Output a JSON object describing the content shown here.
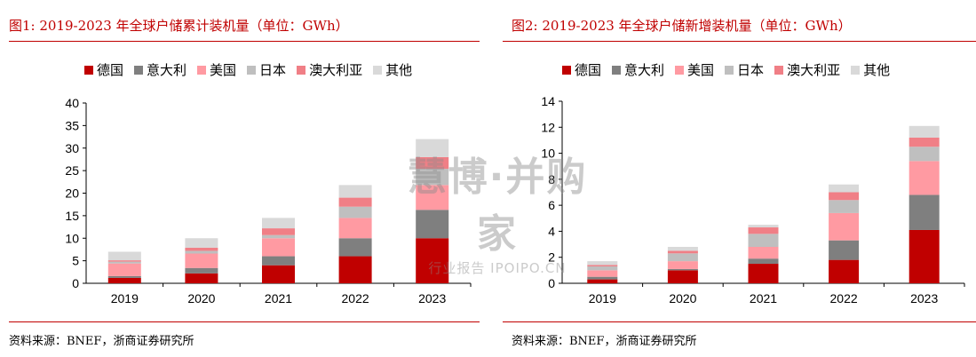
{
  "colors": {
    "accent": "#c00000",
    "series": [
      "#c00000",
      "#7f7f7f",
      "#ff9aa2",
      "#bfbfbf",
      "#f07f86",
      "#d9d9d9"
    ]
  },
  "watermark": {
    "main": "慧博·并购家",
    "sub": "行业报告 IPOIPO.CN"
  },
  "chart_data": [
    {
      "type": "bar",
      "stacked": true,
      "title": "图1:  2019-2023 年全球户储累计装机量（单位：GWh）",
      "source": "资料来源：BNEF，浙商证券研究所",
      "categories": [
        "2019",
        "2020",
        "2021",
        "2022",
        "2023"
      ],
      "ylim": [
        0,
        40
      ],
      "yticks": [
        "0",
        "5",
        "10",
        "15",
        "20",
        "25",
        "30",
        "35",
        "40"
      ],
      "series": [
        {
          "name": "德国",
          "values": [
            1.2,
            2.2,
            4.0,
            6.0,
            10.0
          ]
        },
        {
          "name": "意大利",
          "values": [
            0.4,
            1.2,
            2.0,
            4.0,
            6.3
          ]
        },
        {
          "name": "美国",
          "values": [
            2.8,
            3.2,
            4.0,
            4.5,
            5.5
          ]
        },
        {
          "name": "日本",
          "values": [
            0.4,
            0.6,
            0.7,
            2.5,
            3.6
          ]
        },
        {
          "name": "澳大利亚",
          "values": [
            0.3,
            0.7,
            1.5,
            2.0,
            2.6
          ]
        },
        {
          "name": "其他",
          "values": [
            1.9,
            2.1,
            2.3,
            2.8,
            4.0
          ]
        }
      ]
    },
    {
      "type": "bar",
      "stacked": true,
      "title": "图2:  2019-2023 年全球户储新增装机量（单位：GWh）",
      "source": "资料来源：BNEF，浙商证券研究所",
      "categories": [
        "2019",
        "2020",
        "2021",
        "2022",
        "2023"
      ],
      "ylim": [
        0,
        14
      ],
      "yticks": [
        "0",
        "2",
        "4",
        "6",
        "8",
        "10",
        "12",
        "14"
      ],
      "series": [
        {
          "name": "德国",
          "values": [
            0.3,
            1.0,
            1.5,
            1.8,
            4.1
          ]
        },
        {
          "name": "意大利",
          "values": [
            0.2,
            0.1,
            0.4,
            1.5,
            2.7
          ]
        },
        {
          "name": "美国",
          "values": [
            0.5,
            0.6,
            0.9,
            2.1,
            2.6
          ]
        },
        {
          "name": "日本",
          "values": [
            0.3,
            0.6,
            1.0,
            1.0,
            1.1
          ]
        },
        {
          "name": "澳大利亚",
          "values": [
            0.1,
            0.2,
            0.5,
            0.6,
            0.7
          ]
        },
        {
          "name": "其他",
          "values": [
            0.3,
            0.3,
            0.2,
            0.6,
            0.9
          ]
        }
      ]
    }
  ]
}
